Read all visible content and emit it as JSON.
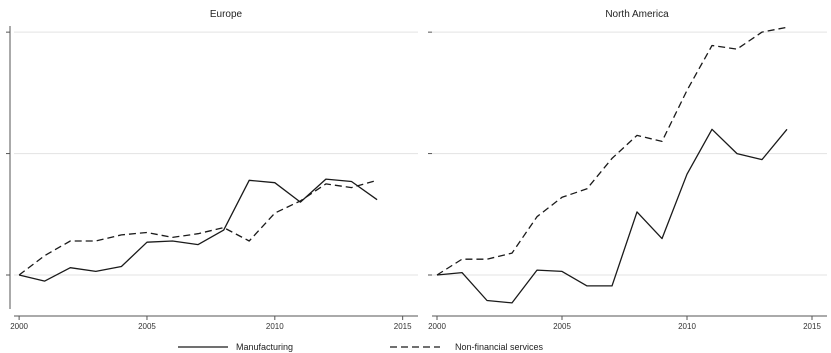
{
  "chart_data": [
    {
      "type": "line",
      "title": "Europe",
      "x": [
        2000,
        2001,
        2002,
        2003,
        2004,
        2005,
        2006,
        2007,
        2008,
        2009,
        2010,
        2011,
        2012,
        2013,
        2014
      ],
      "series": [
        {
          "name": "Manufacturing",
          "style": "solid",
          "values": [
            0.0,
            -0.05,
            0.06,
            0.03,
            0.07,
            0.27,
            0.28,
            0.25,
            0.37,
            0.78,
            0.76,
            0.6,
            0.79,
            0.77,
            0.62
          ]
        },
        {
          "name": "Non-financial services",
          "style": "dashed",
          "values": [
            0.0,
            0.16,
            0.28,
            0.28,
            0.33,
            0.35,
            0.31,
            0.34,
            0.39,
            0.28,
            0.51,
            0.61,
            0.75,
            0.72,
            0.78
          ]
        }
      ],
      "xticks": [
        "2000",
        "2005",
        "2010",
        "2015"
      ],
      "xlim": [
        1999.8,
        2015.6
      ],
      "ylim": [
        -0.28,
        2.1
      ],
      "xlabel": "",
      "ylabel": "",
      "grid": "horizontal"
    },
    {
      "type": "line",
      "title": "North America",
      "x": [
        2000,
        2001,
        2002,
        2003,
        2004,
        2005,
        2006,
        2007,
        2008,
        2009,
        2010,
        2011,
        2012,
        2013,
        2014
      ],
      "series": [
        {
          "name": "Manufacturing",
          "style": "solid",
          "values": [
            0.0,
            0.02,
            -0.21,
            -0.23,
            0.04,
            0.03,
            -0.09,
            -0.09,
            0.52,
            0.3,
            0.83,
            1.2,
            1.0,
            0.95,
            1.2
          ]
        },
        {
          "name": "Non-financial services",
          "style": "dashed",
          "values": [
            0.0,
            0.13,
            0.13,
            0.18,
            0.48,
            0.64,
            0.71,
            0.96,
            1.15,
            1.1,
            1.52,
            1.89,
            1.86,
            2.0,
            2.04
          ]
        }
      ],
      "xticks": [
        "2000",
        "2005",
        "2010",
        "2015"
      ],
      "xlim": [
        1999.8,
        2015.6
      ],
      "ylim": [
        -0.28,
        2.1
      ],
      "xlabel": "",
      "ylabel": "",
      "grid": "horizontal"
    }
  ],
  "legend": {
    "placement": "bottom",
    "items": [
      {
        "label": "Manufacturing",
        "style": "solid"
      },
      {
        "label": "Non-financial services",
        "style": "dashed"
      }
    ]
  },
  "colors": {
    "line": "#1a1a1a",
    "grid": "#e3e3e3",
    "axis": "#555555"
  }
}
